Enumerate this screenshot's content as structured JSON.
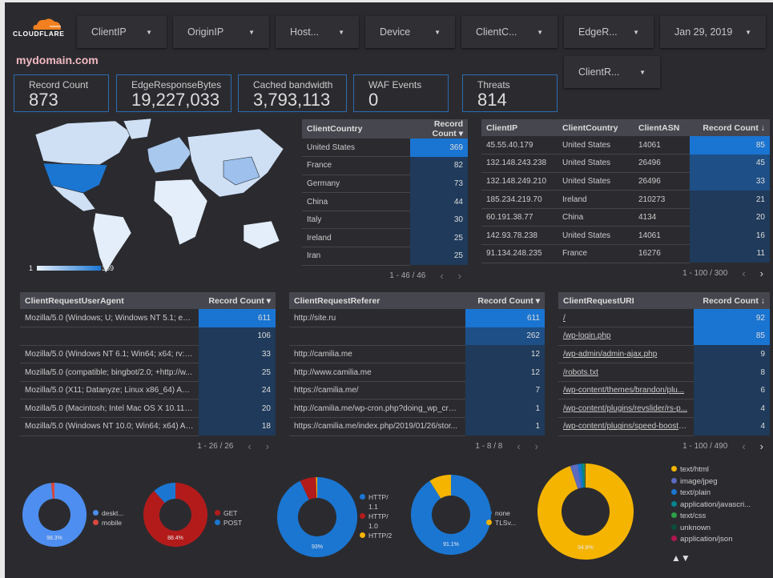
{
  "logo": {
    "text": "CLOUDFLARE",
    "color": "#f38020"
  },
  "filters": [
    {
      "label": "ClientIP"
    },
    {
      "label": "OriginIP"
    },
    {
      "label": "Host..."
    },
    {
      "label": "Device"
    },
    {
      "label": "ClientC..."
    },
    {
      "label": "EdgeR..."
    },
    {
      "label": "Jan 29, 2019"
    },
    {
      "label": "ClientR..."
    }
  ],
  "domain": "mydomain.com",
  "kpis": [
    {
      "label": "Record Count",
      "value": "873"
    },
    {
      "label": "EdgeResponseBytes",
      "value": "19,227,033"
    },
    {
      "label": "Cached bandwidth",
      "value": "3,793,113"
    },
    {
      "label": "WAF Events",
      "value": "0"
    },
    {
      "label": "Threats",
      "value": "814"
    }
  ],
  "map": {
    "legend_min": "1",
    "legend_max": "369",
    "highlight": "United States"
  },
  "tables": {
    "country": {
      "headers": [
        "ClientCountry",
        "Record Count ▾"
      ],
      "rows": [
        [
          "United States",
          369
        ],
        [
          "France",
          82
        ],
        [
          "Germany",
          73
        ],
        [
          "China",
          44
        ],
        [
          "Italy",
          30
        ],
        [
          "Ireland",
          25
        ],
        [
          "Iran",
          25
        ]
      ],
      "pager": "1 - 46 / 46"
    },
    "ip": {
      "headers": [
        "ClientIP",
        "ClientCountry",
        "ClientASN",
        "Record Count ↓"
      ],
      "rows": [
        [
          "45.55.40.179",
          "United States",
          "14061",
          85
        ],
        [
          "132.148.243.238",
          "United States",
          "26496",
          45
        ],
        [
          "132.148.249.210",
          "United States",
          "26496",
          33
        ],
        [
          "185.234.219.70",
          "Ireland",
          "210273",
          21
        ],
        [
          "60.191.38.77",
          "China",
          "4134",
          20
        ],
        [
          "142.93.78.238",
          "United States",
          "14061",
          16
        ],
        [
          "91.134.248.235",
          "France",
          "16276",
          11
        ]
      ],
      "pager": "1 - 100 / 300"
    },
    "ua": {
      "headers": [
        "ClientRequestUserAgent",
        "Record Count ▾"
      ],
      "rows": [
        [
          "Mozilla/5.0 (Windows; U; Windows NT 5.1; en-U...",
          611
        ],
        [
          "",
          106
        ],
        [
          "Mozilla/5.0 (Windows NT 6.1; Win64; x64; rv:64....",
          33
        ],
        [
          "Mozilla/5.0 (compatible; bingbot/2.0; +http://w...",
          25
        ],
        [
          "Mozilla/5.0 (X11; Datanyze; Linux x86_64) Appl...",
          24
        ],
        [
          "Mozilla/5.0 (Macintosh; Intel Mac OS X 10.11; r...",
          20
        ],
        [
          "Mozilla/5.0 (Windows NT 10.0; Win64; x64) App...",
          18
        ]
      ],
      "pager": "1 - 26 / 26"
    },
    "ref": {
      "headers": [
        "ClientRequestReferer",
        "Record Count ▾"
      ],
      "rows": [
        [
          "http://site.ru",
          611
        ],
        [
          "",
          262
        ],
        [
          "http://camilia.me",
          12
        ],
        [
          "http://www.camilia.me",
          12
        ],
        [
          "https://camilia.me/",
          7
        ],
        [
          "http://camilia.me/wp-cron.php?doing_wp_cron...",
          1
        ],
        [
          "https://camilia.me/index.php/2019/01/26/stor...",
          1
        ]
      ],
      "pager": "1 - 8 / 8"
    },
    "uri": {
      "headers": [
        "ClientRequestURI",
        "Record Count ↓"
      ],
      "rows": [
        [
          "/",
          92
        ],
        [
          "/wp-login.php",
          85
        ],
        [
          "/wp-admin/admin-ajax.php",
          9
        ],
        [
          "/robots.txt",
          8
        ],
        [
          "/wp-content/themes/brandon/plu...",
          6
        ],
        [
          "/wp-content/plugins/revslider/rs-p...",
          4
        ],
        [
          "/wp-content/plugins/speed-booste...",
          4
        ]
      ],
      "pager": "1 - 100 / 490"
    }
  },
  "chart_data": [
    {
      "type": "pie",
      "donut": true,
      "series": [
        {
          "name": "deskt...",
          "value": 98.3,
          "color": "#4d8ef0"
        },
        {
          "name": "mobile",
          "value": 1.7,
          "color": "#d9473f"
        }
      ],
      "label": "98.3%"
    },
    {
      "type": "pie",
      "donut": true,
      "series": [
        {
          "name": "GET",
          "value": 88.4,
          "color": "#b31b1b"
        },
        {
          "name": "POST",
          "value": 11.6,
          "color": "#1b76d2"
        }
      ],
      "label": "88.4%"
    },
    {
      "type": "pie",
      "donut": true,
      "series": [
        {
          "name": "HTTP/ 1.1",
          "value": 93,
          "color": "#1b76d2"
        },
        {
          "name": "HTTP/ 1.0",
          "value": 6.5,
          "color": "#b31b1b"
        },
        {
          "name": "HTTP/2",
          "value": 0.5,
          "color": "#f5b400"
        }
      ],
      "label": "93%"
    },
    {
      "type": "pie",
      "donut": true,
      "series": [
        {
          "name": "none",
          "value": 91.1,
          "color": "#1b76d2"
        },
        {
          "name": "TLSv...",
          "value": 8.9,
          "color": "#f5b400"
        }
      ],
      "label": "91.1%"
    },
    {
      "type": "pie",
      "donut": true,
      "series": [
        {
          "name": "text/html",
          "value": 94.8,
          "color": "#f5b400"
        },
        {
          "name": "image/jpeg",
          "value": 2.5,
          "color": "#5c6bc0"
        },
        {
          "name": "text/plain",
          "value": 1.2,
          "color": "#1b76d2"
        },
        {
          "name": "application/javascri...",
          "value": 0.8,
          "color": "#00838f"
        },
        {
          "name": "text/css",
          "value": 0.4,
          "color": "#2e9e48"
        },
        {
          "name": "unknown",
          "value": 0.2,
          "color": "#0b4d3a"
        },
        {
          "name": "application/json",
          "value": 0.1,
          "color": "#b0174f"
        }
      ],
      "label": "94.8%",
      "legend_pager": "▲▼"
    }
  ]
}
